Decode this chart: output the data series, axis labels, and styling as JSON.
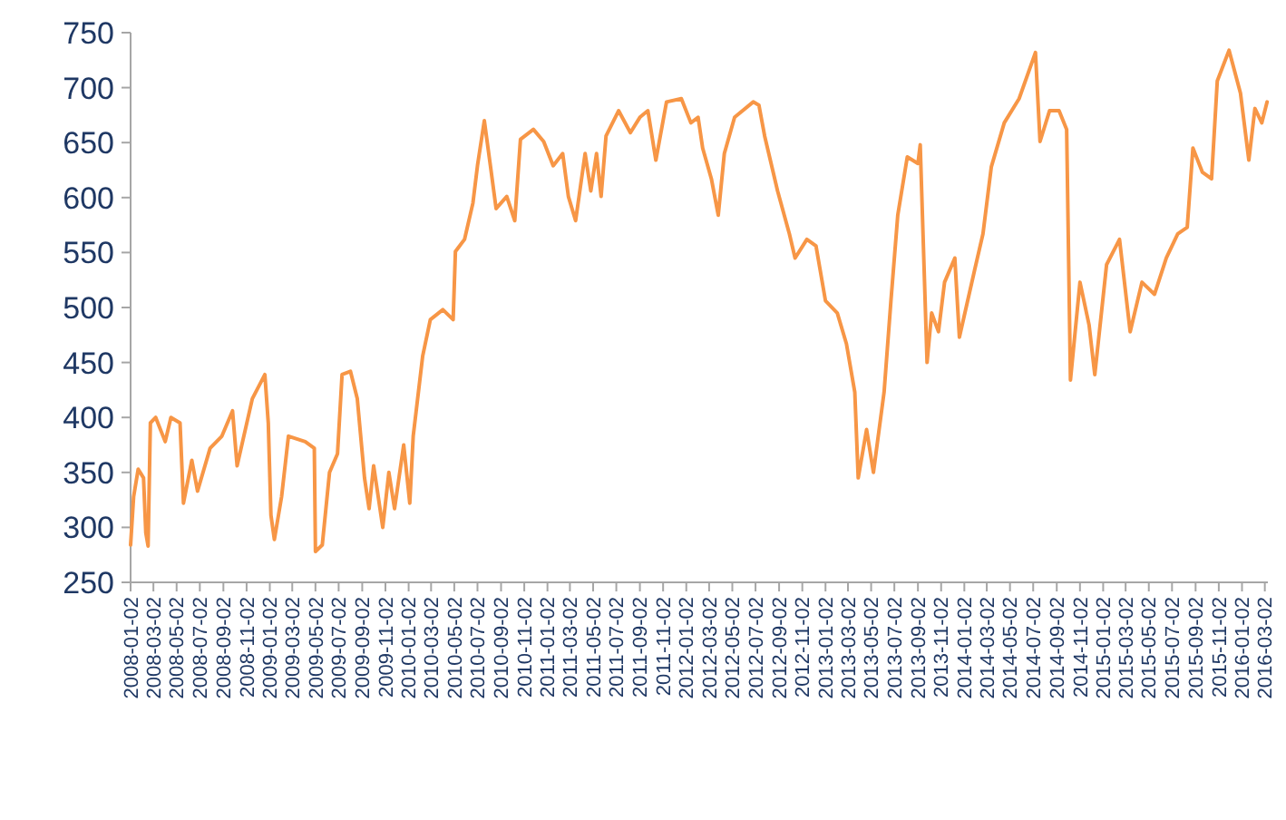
{
  "chart_data": {
    "type": "line",
    "x": [
      "2008-01-02",
      "2008-01-10",
      "2008-01-22",
      "2008-02-05",
      "2008-02-11",
      "2008-02-17",
      "2008-02-23",
      "2008-03-08",
      "2008-04-02",
      "2008-04-17",
      "2008-05-11",
      "2008-05-20",
      "2008-06-11",
      "2008-06-26",
      "2008-07-29",
      "2008-08-29",
      "2008-09-26",
      "2008-10-08",
      "2008-11-17",
      "2008-12-20",
      "2008-12-29",
      "2009-01-05",
      "2009-01-14",
      "2009-02-02",
      "2009-02-20",
      "2009-04-05",
      "2009-04-29",
      "2009-05-02",
      "2009-05-20",
      "2009-06-08",
      "2009-06-29",
      "2009-07-11",
      "2009-08-02",
      "2009-08-20",
      "2009-09-08",
      "2009-09-20",
      "2009-10-02",
      "2009-10-26",
      "2009-11-11",
      "2009-11-26",
      "2009-12-20",
      "2010-01-05",
      "2010-01-14",
      "2010-02-08",
      "2010-02-28",
      "2010-04-02",
      "2010-04-29",
      "2010-05-05",
      "2010-05-29",
      "2010-06-20",
      "2010-07-02",
      "2010-07-20",
      "2010-08-05",
      "2010-08-20",
      "2010-09-17",
      "2010-10-08",
      "2010-10-23",
      "2010-11-26",
      "2010-12-23",
      "2011-01-17",
      "2011-02-11",
      "2011-02-26",
      "2011-03-17",
      "2011-04-11",
      "2011-04-26",
      "2011-05-11",
      "2011-05-23",
      "2011-06-05",
      "2011-07-08",
      "2011-08-08",
      "2011-09-02",
      "2011-09-23",
      "2011-10-14",
      "2011-11-11",
      "2011-12-20",
      "2012-01-14",
      "2012-02-02",
      "2012-02-14",
      "2012-03-08",
      "2012-03-26",
      "2012-04-11",
      "2012-05-08",
      "2012-06-26",
      "2012-07-11",
      "2012-07-26",
      "2012-08-29",
      "2012-09-29",
      "2012-10-14",
      "2012-11-14",
      "2012-12-08",
      "2013-01-02",
      "2013-02-02",
      "2013-02-26",
      "2013-03-20",
      "2013-03-29",
      "2013-04-20",
      "2013-05-08",
      "2013-06-05",
      "2013-06-23",
      "2013-07-11",
      "2013-08-05",
      "2013-09-02",
      "2013-09-08",
      "2013-09-26",
      "2013-10-08",
      "2013-10-26",
      "2013-11-11",
      "2013-12-08",
      "2013-12-20",
      "2014-01-29",
      "2014-02-20",
      "2014-03-14",
      "2014-04-17",
      "2014-05-26",
      "2014-07-08",
      "2014-07-20",
      "2014-08-14",
      "2014-09-08",
      "2014-09-28",
      "2014-10-08",
      "2014-11-02",
      "2014-11-26",
      "2014-12-11",
      "2015-01-11",
      "2015-02-14",
      "2015-03-14",
      "2015-04-14",
      "2015-05-17",
      "2015-06-17",
      "2015-07-17",
      "2015-08-11",
      "2015-08-26",
      "2015-09-20",
      "2015-10-14",
      "2015-10-29",
      "2015-11-29",
      "2015-12-29",
      "2016-01-20",
      "2016-02-05",
      "2016-02-23",
      "2016-03-08"
    ],
    "series": [
      {
        "color": "#f79646",
        "values": [
          284,
          328,
          353,
          345,
          295,
          283,
          395,
          400,
          378,
          400,
          395,
          322,
          361,
          333,
          372,
          383,
          406,
          356,
          417,
          439,
          395,
          311,
          289,
          328,
          383,
          378,
          372,
          278,
          284,
          350,
          367,
          439,
          442,
          417,
          345,
          317,
          356,
          300,
          350,
          317,
          375,
          322,
          383,
          456,
          489,
          498,
          489,
          551,
          562,
          595,
          629,
          670,
          629,
          590,
          601,
          579,
          653,
          662,
          651,
          629,
          640,
          601,
          579,
          640,
          606,
          640,
          601,
          656,
          679,
          659,
          673,
          679,
          634,
          687,
          690,
          668,
          673,
          645,
          617,
          584,
          640,
          673,
          687,
          684,
          656,
          606,
          567,
          545,
          562,
          556,
          506,
          495,
          467,
          423,
          345,
          389,
          350,
          423,
          506,
          584,
          637,
          631,
          648,
          450,
          495,
          478,
          523,
          545,
          473,
          534,
          567,
          628,
          668,
          690,
          732,
          651,
          679,
          679,
          662,
          434,
          523,
          484,
          439,
          539,
          562,
          478,
          523,
          512,
          545,
          567,
          573,
          645,
          623,
          617,
          706,
          734,
          695,
          634,
          681,
          668,
          687
        ]
      }
    ],
    "xlim": [
      "2008-01-02",
      "2016-03-10"
    ],
    "xticks": [
      "2008-01-02",
      "2008-03-02",
      "2008-05-02",
      "2008-07-02",
      "2008-09-02",
      "2008-11-02",
      "2009-01-02",
      "2009-03-02",
      "2009-05-02",
      "2009-07-02",
      "2009-09-02",
      "2009-11-02",
      "2010-01-02",
      "2010-03-02",
      "2010-05-02",
      "2010-07-02",
      "2010-09-02",
      "2010-11-02",
      "2011-01-02",
      "2011-03-02",
      "2011-05-02",
      "2011-07-02",
      "2011-09-02",
      "2011-11-02",
      "2012-01-02",
      "2012-03-02",
      "2012-05-02",
      "2012-07-02",
      "2012-09-02",
      "2012-11-02",
      "2013-01-02",
      "2013-03-02",
      "2013-05-02",
      "2013-07-02",
      "2013-09-02",
      "2013-11-02",
      "2014-01-02",
      "2014-03-02",
      "2014-05-02",
      "2014-07-02",
      "2014-09-02",
      "2014-11-02",
      "2015-01-02",
      "2015-03-02",
      "2015-05-02",
      "2015-07-02",
      "2015-09-02",
      "2015-11-02",
      "2016-01-02",
      "2016-03-02"
    ],
    "ylim": [
      250,
      750
    ],
    "yticks": [
      250,
      300,
      350,
      400,
      450,
      500,
      550,
      600,
      650,
      700,
      750
    ],
    "grid": false,
    "marker": "none",
    "line_style": "solid"
  }
}
